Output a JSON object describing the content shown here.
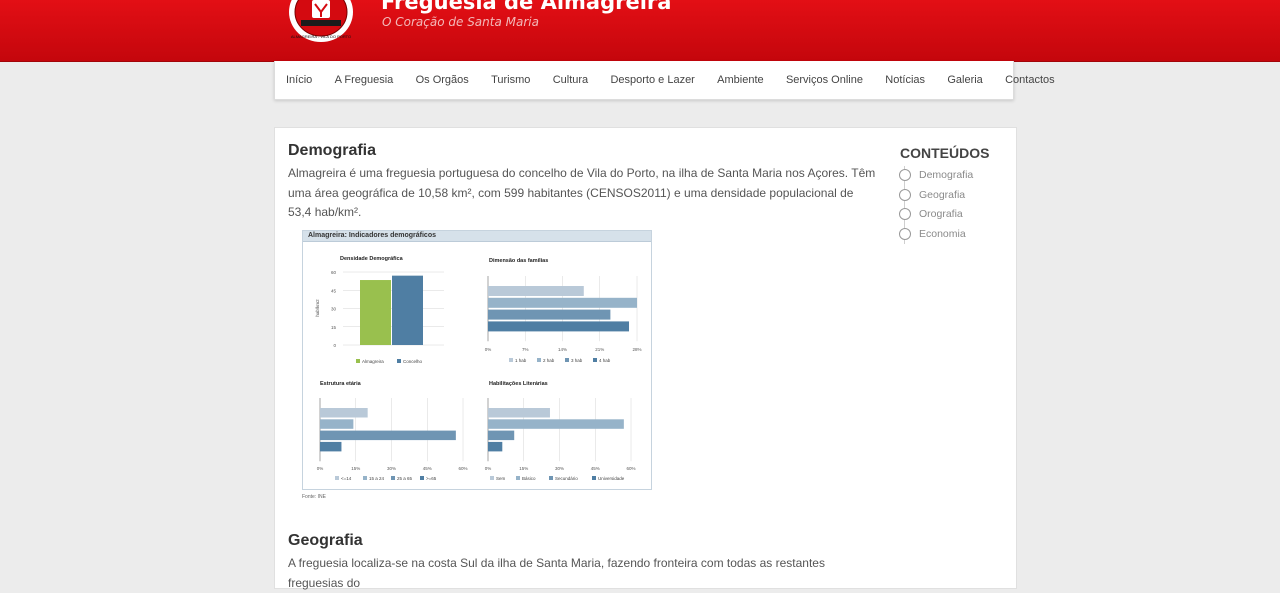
{
  "header": {
    "title": "Freguesia de Almagreira",
    "subtitle": "O Coração de Santa Maria",
    "logo_text": "ALMAGREIRA - VILA DO PORTO"
  },
  "nav": {
    "items": [
      "Início",
      "A Freguesia",
      "Os Orgãos",
      "Turismo",
      "Cultura",
      "Desporto e Lazer",
      "Ambiente",
      "Serviços Online",
      "Notícias",
      "Galeria",
      "Contactos"
    ]
  },
  "content": {
    "sections": [
      {
        "title": "Demografia",
        "text": "Almagreira é uma freguesia portuguesa do concelho de Vila do Porto, na ilha de Santa Maria nos Açores. Têm uma área geográfica de 10,58 km², com 599 habitantes (CENSOS2011) e uma densidade populacional de 53,4 hab/km²."
      },
      {
        "title": "Geografia",
        "text": "A freguesia localiza-se na costa Sul da ilha de Santa Maria, fazendo fronteira com todas as restantes freguesias do"
      }
    ],
    "infographic_title": "Almagreira: Indicadores demográficos",
    "source": "Fonte: INE"
  },
  "sidebar": {
    "title": "CONTEÚDOS",
    "items": [
      "Demografia",
      "Geografia",
      "Orografia",
      "Economia"
    ]
  },
  "colors": {
    "header_red": "#d40a10",
    "green": "#99c04e",
    "blue": "#4f7ea3",
    "c1": "#b9c9d8",
    "c2": "#96b3c9",
    "c3": "#6f95b3",
    "c4": "#4f7ea3"
  },
  "chart_data": [
    {
      "type": "bar",
      "title": "Densidade Demográfica",
      "ylabel": "hab/km2",
      "categories": [
        "Almagreira",
        "Concelho"
      ],
      "values": [
        53.4,
        57
      ],
      "ylim": [
        0,
        60
      ],
      "yticks": [
        "0",
        "15",
        "30",
        "45",
        "60"
      ],
      "legend": [
        "Almagreira",
        "Concelho"
      ]
    },
    {
      "type": "bar",
      "orientation": "horizontal",
      "title": "Dimensão das famílias",
      "categories": [
        "1 hab",
        "2 hab",
        "3 hab",
        "4 hab"
      ],
      "values": [
        18,
        28,
        23,
        26.5
      ],
      "xlim": [
        0,
        28
      ],
      "xticks": [
        "0%",
        "7%",
        "14%",
        "21%",
        "28%"
      ],
      "legend": [
        "1 hab",
        "2 hab",
        "3 hab",
        "4 hab"
      ]
    },
    {
      "type": "bar",
      "orientation": "horizontal",
      "title": "Estrutura etária",
      "categories": [
        "<=14",
        "15 a 24",
        "25 a 65",
        ">=65"
      ],
      "values": [
        20,
        14,
        57,
        9
      ],
      "xlim": [
        0,
        60
      ],
      "xticks": [
        "0%",
        "15%",
        "30%",
        "45%",
        "60%"
      ],
      "legend": [
        "<=14",
        "15 a 24",
        "25 a 65",
        ">=65"
      ]
    },
    {
      "type": "bar",
      "orientation": "horizontal",
      "title": "Habilitações Literárias",
      "categories": [
        "Sem",
        "Básico",
        "Secundário",
        "Universidade"
      ],
      "values": [
        26,
        57,
        11,
        6
      ],
      "xlim": [
        0,
        60
      ],
      "xticks": [
        "0%",
        "15%",
        "30%",
        "45%",
        "60%"
      ],
      "legend": [
        "Sem",
        "Básico",
        "Secundário",
        "Universidade"
      ]
    }
  ]
}
